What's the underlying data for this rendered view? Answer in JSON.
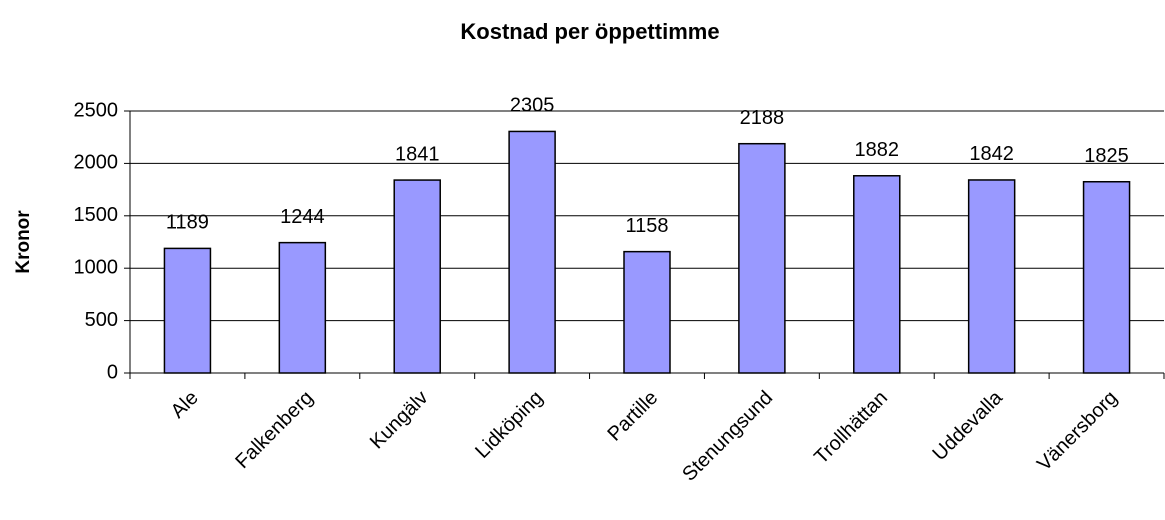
{
  "chart_data": {
    "type": "bar",
    "title": "Kostnad per öppettimme",
    "y_label": "Kronor",
    "categories": [
      "Ale",
      "Falkenberg",
      "Kungälv",
      "Lidköping",
      "Partille",
      "Stenungsund",
      "Trollhättan",
      "Uddevalla",
      "Vänersborg"
    ],
    "values": [
      1189,
      1244,
      1841,
      2305,
      1158,
      2188,
      1882,
      1842,
      1825
    ],
    "color": "#9999ff",
    "ylim": [
      0,
      2500
    ],
    "yticks": [
      0,
      500,
      1000,
      1500,
      2000,
      2500
    ],
    "grid": true
  }
}
